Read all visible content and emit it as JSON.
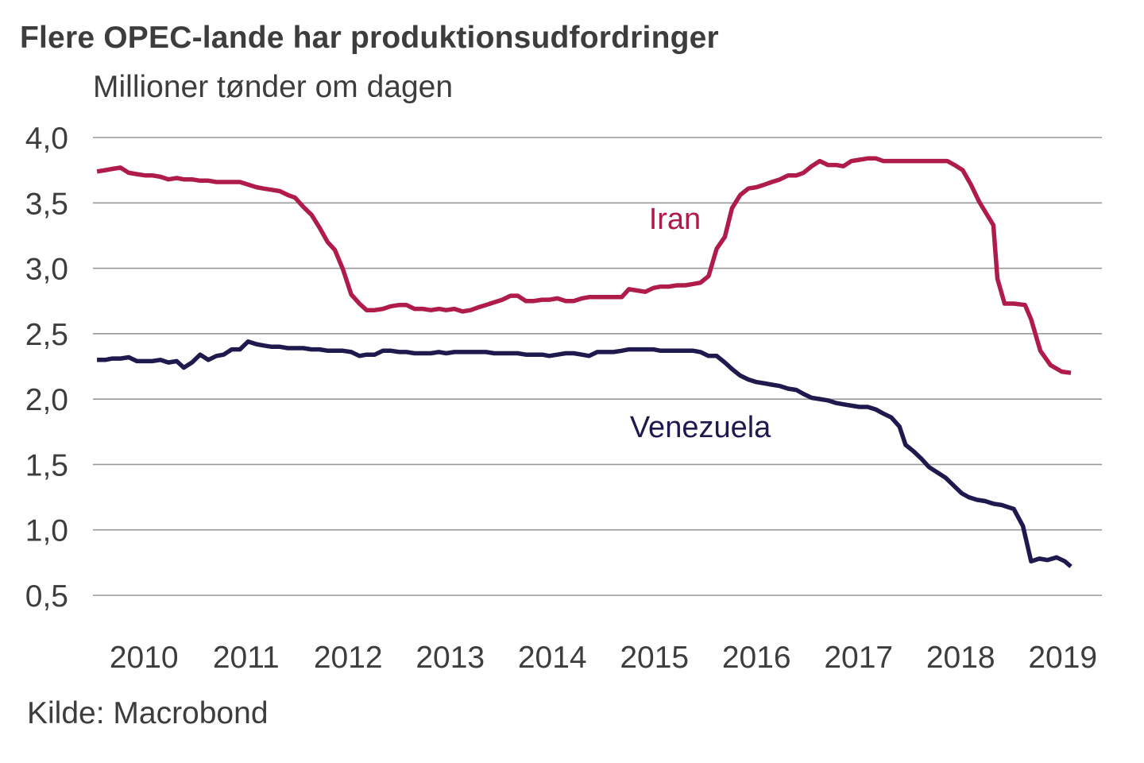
{
  "chart_data": {
    "type": "line",
    "title": "Flere OPEC-lande har produktionsudfordringer",
    "subtitle": "Millioner tønder om dagen",
    "xlabel": "",
    "ylabel": "Millioner tønder om dagen",
    "source": "Kilde: Macrobond",
    "ylim": [
      0.5,
      4.0
    ],
    "xlim": [
      2010.0,
      2019.95
    ],
    "yticks": [
      4.0,
      3.5,
      3.0,
      2.5,
      2.0,
      1.5,
      1.0,
      0.5
    ],
    "ytick_labels": [
      "4,0",
      "3,5",
      "3,0",
      "2,5",
      "2,0",
      "1,5",
      "1,0",
      "0,5"
    ],
    "xtick_labels": [
      "2010",
      "2011",
      "2012",
      "2013",
      "2014",
      "2015",
      "2016",
      "2017",
      "2018",
      "2019"
    ],
    "grid": true,
    "legend": "inline labels",
    "series": [
      {
        "name": "Iran",
        "label": "Iran",
        "color": "#b01c4a",
        "label_at": [
          2015.7,
          3.3
        ],
        "points": [
          [
            2010.04,
            3.74
          ],
          [
            2010.12,
            3.75
          ],
          [
            2010.19,
            3.76
          ],
          [
            2010.27,
            3.77
          ],
          [
            2010.35,
            3.73
          ],
          [
            2010.43,
            3.72
          ],
          [
            2010.51,
            3.71
          ],
          [
            2010.58,
            3.71
          ],
          [
            2010.66,
            3.7
          ],
          [
            2010.74,
            3.68
          ],
          [
            2010.82,
            3.69
          ],
          [
            2010.89,
            3.68
          ],
          [
            2010.97,
            3.68
          ],
          [
            2011.05,
            3.67
          ],
          [
            2011.13,
            3.67
          ],
          [
            2011.21,
            3.66
          ],
          [
            2011.28,
            3.66
          ],
          [
            2011.36,
            3.66
          ],
          [
            2011.44,
            3.66
          ],
          [
            2011.52,
            3.64
          ],
          [
            2011.6,
            3.62
          ],
          [
            2011.67,
            3.61
          ],
          [
            2011.75,
            3.6
          ],
          [
            2011.83,
            3.59
          ],
          [
            2011.91,
            3.56
          ],
          [
            2011.98,
            3.54
          ],
          [
            2012.06,
            3.47
          ],
          [
            2012.14,
            3.41
          ],
          [
            2012.22,
            3.31
          ],
          [
            2012.3,
            3.2
          ],
          [
            2012.37,
            3.14
          ],
          [
            2012.45,
            2.99
          ],
          [
            2012.53,
            2.8
          ],
          [
            2012.61,
            2.73
          ],
          [
            2012.68,
            2.68
          ],
          [
            2012.76,
            2.68
          ],
          [
            2012.84,
            2.69
          ],
          [
            2012.92,
            2.71
          ],
          [
            2013.0,
            2.72
          ],
          [
            2013.07,
            2.72
          ],
          [
            2013.15,
            2.69
          ],
          [
            2013.23,
            2.69
          ],
          [
            2013.31,
            2.68
          ],
          [
            2013.39,
            2.69
          ],
          [
            2013.46,
            2.68
          ],
          [
            2013.54,
            2.69
          ],
          [
            2013.62,
            2.67
          ],
          [
            2013.7,
            2.68
          ],
          [
            2013.77,
            2.7
          ],
          [
            2013.85,
            2.72
          ],
          [
            2013.93,
            2.74
          ],
          [
            2014.01,
            2.76
          ],
          [
            2014.09,
            2.79
          ],
          [
            2014.16,
            2.79
          ],
          [
            2014.24,
            2.75
          ],
          [
            2014.32,
            2.75
          ],
          [
            2014.4,
            2.76
          ],
          [
            2014.47,
            2.76
          ],
          [
            2014.55,
            2.77
          ],
          [
            2014.63,
            2.75
          ],
          [
            2014.71,
            2.75
          ],
          [
            2014.79,
            2.77
          ],
          [
            2014.86,
            2.78
          ],
          [
            2014.94,
            2.78
          ],
          [
            2015.02,
            2.78
          ],
          [
            2015.1,
            2.78
          ],
          [
            2015.18,
            2.78
          ],
          [
            2015.25,
            2.84
          ],
          [
            2015.33,
            2.83
          ],
          [
            2015.41,
            2.82
          ],
          [
            2015.49,
            2.85
          ],
          [
            2015.56,
            2.86
          ],
          [
            2015.64,
            2.86
          ],
          [
            2015.72,
            2.87
          ],
          [
            2015.8,
            2.87
          ],
          [
            2015.88,
            2.88
          ],
          [
            2015.95,
            2.89
          ],
          [
            2016.03,
            2.94
          ],
          [
            2016.11,
            3.15
          ],
          [
            2016.19,
            3.24
          ],
          [
            2016.26,
            3.46
          ],
          [
            2016.34,
            3.56
          ],
          [
            2016.42,
            3.61
          ],
          [
            2016.5,
            3.62
          ],
          [
            2016.58,
            3.64
          ],
          [
            2016.65,
            3.66
          ],
          [
            2016.73,
            3.68
          ],
          [
            2016.81,
            3.71
          ],
          [
            2016.89,
            3.71
          ],
          [
            2016.96,
            3.73
          ],
          [
            2017.04,
            3.78
          ],
          [
            2017.12,
            3.82
          ],
          [
            2017.2,
            3.79
          ],
          [
            2017.28,
            3.79
          ],
          [
            2017.35,
            3.78
          ],
          [
            2017.43,
            3.82
          ],
          [
            2017.51,
            3.83
          ],
          [
            2017.59,
            3.84
          ],
          [
            2017.67,
            3.84
          ],
          [
            2017.74,
            3.82
          ],
          [
            2017.82,
            3.82
          ],
          [
            2017.9,
            3.82
          ],
          [
            2017.98,
            3.82
          ],
          [
            2018.05,
            3.82
          ],
          [
            2018.13,
            3.82
          ],
          [
            2018.21,
            3.82
          ],
          [
            2018.29,
            3.82
          ],
          [
            2018.37,
            3.82
          ],
          [
            2018.44,
            3.79
          ],
          [
            2018.52,
            3.75
          ],
          [
            2018.6,
            3.64
          ],
          [
            2018.68,
            3.51
          ],
          [
            2018.75,
            3.42
          ],
          [
            2018.82,
            3.33
          ],
          [
            2018.86,
            2.92
          ],
          [
            2018.93,
            2.73
          ],
          [
            2019.02,
            2.73
          ],
          [
            2019.13,
            2.72
          ],
          [
            2019.19,
            2.61
          ],
          [
            2019.28,
            2.37
          ],
          [
            2019.38,
            2.26
          ],
          [
            2019.49,
            2.21
          ],
          [
            2019.58,
            2.2
          ]
        ]
      },
      {
        "name": "Venezuela",
        "label": "Venezuela",
        "color": "#1f1a4e",
        "label_at": [
          2015.95,
          1.71
        ],
        "points": [
          [
            2010.04,
            2.3
          ],
          [
            2010.12,
            2.3
          ],
          [
            2010.19,
            2.31
          ],
          [
            2010.27,
            2.31
          ],
          [
            2010.35,
            2.32
          ],
          [
            2010.43,
            2.29
          ],
          [
            2010.51,
            2.29
          ],
          [
            2010.58,
            2.29
          ],
          [
            2010.66,
            2.3
          ],
          [
            2010.74,
            2.28
          ],
          [
            2010.82,
            2.29
          ],
          [
            2010.89,
            2.24
          ],
          [
            2010.97,
            2.28
          ],
          [
            2011.05,
            2.34
          ],
          [
            2011.13,
            2.3
          ],
          [
            2011.21,
            2.33
          ],
          [
            2011.28,
            2.34
          ],
          [
            2011.36,
            2.38
          ],
          [
            2011.44,
            2.38
          ],
          [
            2011.52,
            2.44
          ],
          [
            2011.6,
            2.42
          ],
          [
            2011.67,
            2.41
          ],
          [
            2011.75,
            2.4
          ],
          [
            2011.83,
            2.4
          ],
          [
            2011.91,
            2.39
          ],
          [
            2011.98,
            2.39
          ],
          [
            2012.06,
            2.39
          ],
          [
            2012.14,
            2.38
          ],
          [
            2012.22,
            2.38
          ],
          [
            2012.3,
            2.37
          ],
          [
            2012.37,
            2.37
          ],
          [
            2012.45,
            2.37
          ],
          [
            2012.53,
            2.36
          ],
          [
            2012.61,
            2.33
          ],
          [
            2012.68,
            2.34
          ],
          [
            2012.76,
            2.34
          ],
          [
            2012.84,
            2.37
          ],
          [
            2012.92,
            2.37
          ],
          [
            2013.0,
            2.36
          ],
          [
            2013.07,
            2.36
          ],
          [
            2013.15,
            2.35
          ],
          [
            2013.23,
            2.35
          ],
          [
            2013.31,
            2.35
          ],
          [
            2013.39,
            2.36
          ],
          [
            2013.46,
            2.35
          ],
          [
            2013.54,
            2.36
          ],
          [
            2013.62,
            2.36
          ],
          [
            2013.7,
            2.36
          ],
          [
            2013.77,
            2.36
          ],
          [
            2013.85,
            2.36
          ],
          [
            2013.93,
            2.35
          ],
          [
            2014.01,
            2.35
          ],
          [
            2014.09,
            2.35
          ],
          [
            2014.16,
            2.35
          ],
          [
            2014.24,
            2.34
          ],
          [
            2014.32,
            2.34
          ],
          [
            2014.4,
            2.34
          ],
          [
            2014.47,
            2.33
          ],
          [
            2014.55,
            2.34
          ],
          [
            2014.63,
            2.35
          ],
          [
            2014.71,
            2.35
          ],
          [
            2014.79,
            2.34
          ],
          [
            2014.86,
            2.33
          ],
          [
            2014.94,
            2.36
          ],
          [
            2015.02,
            2.36
          ],
          [
            2015.1,
            2.36
          ],
          [
            2015.18,
            2.37
          ],
          [
            2015.25,
            2.38
          ],
          [
            2015.33,
            2.38
          ],
          [
            2015.41,
            2.38
          ],
          [
            2015.49,
            2.38
          ],
          [
            2015.56,
            2.37
          ],
          [
            2015.64,
            2.37
          ],
          [
            2015.72,
            2.37
          ],
          [
            2015.8,
            2.37
          ],
          [
            2015.88,
            2.37
          ],
          [
            2015.95,
            2.36
          ],
          [
            2016.03,
            2.33
          ],
          [
            2016.11,
            2.33
          ],
          [
            2016.19,
            2.28
          ],
          [
            2016.26,
            2.23
          ],
          [
            2016.34,
            2.18
          ],
          [
            2016.42,
            2.15
          ],
          [
            2016.5,
            2.13
          ],
          [
            2016.58,
            2.12
          ],
          [
            2016.65,
            2.11
          ],
          [
            2016.73,
            2.1
          ],
          [
            2016.81,
            2.08
          ],
          [
            2016.89,
            2.07
          ],
          [
            2016.96,
            2.04
          ],
          [
            2017.04,
            2.01
          ],
          [
            2017.12,
            2.0
          ],
          [
            2017.2,
            1.99
          ],
          [
            2017.28,
            1.97
          ],
          [
            2017.35,
            1.96
          ],
          [
            2017.43,
            1.95
          ],
          [
            2017.51,
            1.94
          ],
          [
            2017.59,
            1.94
          ],
          [
            2017.67,
            1.92
          ],
          [
            2017.74,
            1.89
          ],
          [
            2017.82,
            1.86
          ],
          [
            2017.9,
            1.79
          ],
          [
            2017.96,
            1.65
          ],
          [
            2018.04,
            1.6
          ],
          [
            2018.12,
            1.54
          ],
          [
            2018.19,
            1.48
          ],
          [
            2018.27,
            1.44
          ],
          [
            2018.35,
            1.4
          ],
          [
            2018.43,
            1.34
          ],
          [
            2018.51,
            1.28
          ],
          [
            2018.58,
            1.25
          ],
          [
            2018.66,
            1.23
          ],
          [
            2018.74,
            1.22
          ],
          [
            2018.82,
            1.2
          ],
          [
            2018.9,
            1.19
          ],
          [
            2019.02,
            1.16
          ],
          [
            2019.11,
            1.03
          ],
          [
            2019.19,
            0.76
          ],
          [
            2019.27,
            0.78
          ],
          [
            2019.35,
            0.77
          ],
          [
            2019.44,
            0.79
          ],
          [
            2019.52,
            0.76
          ],
          [
            2019.58,
            0.72
          ]
        ]
      }
    ]
  }
}
